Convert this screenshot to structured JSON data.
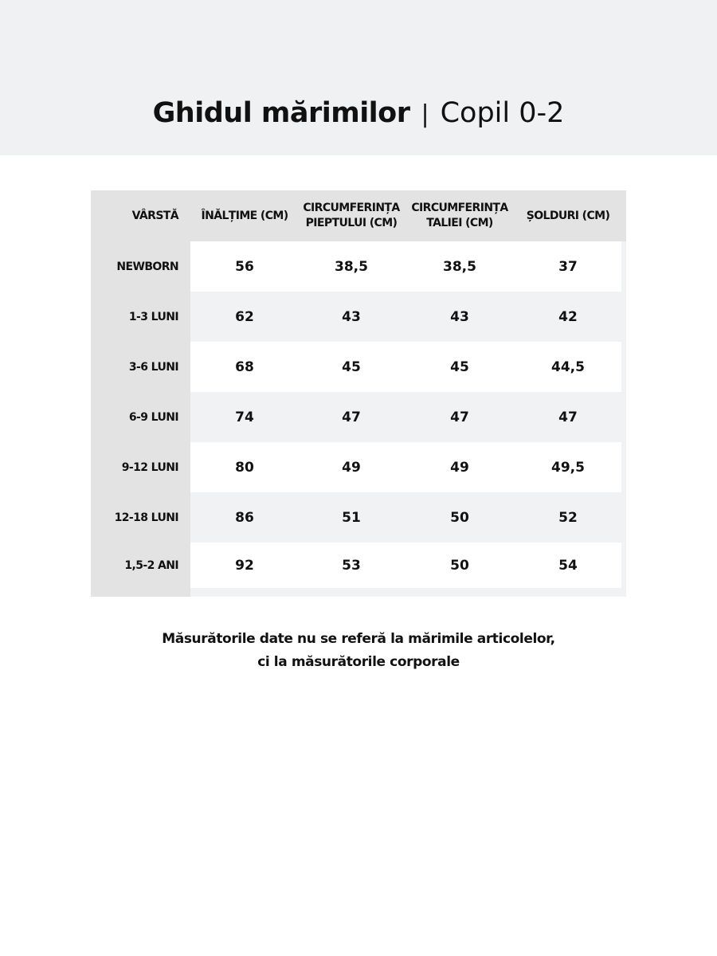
{
  "header": {
    "title_bold": "Ghidul mărimilor",
    "separator": "|",
    "title_sub": "Copil 0-2"
  },
  "table": {
    "columns": [
      "VÂRSTĂ",
      "ÎNĂLȚIME (CM)",
      "CIRCUMFERINȚA PIEPTULUI (CM)",
      "CIRCUMFERINȚA TALIEI (CM)",
      "ȘOLDURI (CM)"
    ],
    "rows": [
      [
        "NEWBORN",
        "56",
        "38,5",
        "38,5",
        "37"
      ],
      [
        "1-3 LUNI",
        "62",
        "43",
        "43",
        "42"
      ],
      [
        "3-6 LUNI",
        "68",
        "45",
        "45",
        "44,5"
      ],
      [
        "6-9 LUNI",
        "74",
        "47",
        "47",
        "47"
      ],
      [
        "9-12 LUNI",
        "80",
        "49",
        "49",
        "49,5"
      ],
      [
        "12-18 LUNI",
        "86",
        "51",
        "50",
        "52"
      ],
      [
        "1,5-2 ANI",
        "92",
        "53",
        "50",
        "54"
      ]
    ]
  },
  "note": {
    "line1": "Măsurătorile date nu se referă la mărimile articolelor,",
    "line2": "ci la măsurătorile corporale"
  },
  "colors": {
    "header_band": "#f0f1f2",
    "label_bg": "#e3e3e3",
    "row_alt": "#f1f2f3",
    "row_white": "#ffffff"
  }
}
